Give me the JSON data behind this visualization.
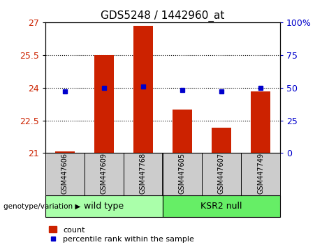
{
  "title": "GDS5248 / 1442960_at",
  "samples": [
    "GSM447606",
    "GSM447609",
    "GSM447768",
    "GSM447605",
    "GSM447607",
    "GSM447749"
  ],
  "count_values": [
    21.08,
    25.48,
    26.82,
    23.0,
    22.18,
    23.82
  ],
  "percentile_values": [
    47,
    50,
    51,
    48,
    47,
    50
  ],
  "ylim_left": [
    21,
    27
  ],
  "ylim_right": [
    0,
    100
  ],
  "yticks_left": [
    21,
    22.5,
    24,
    25.5,
    27
  ],
  "yticks_right": [
    0,
    25,
    50,
    75,
    100
  ],
  "bar_color": "#cc2200",
  "dot_color": "#0000cc",
  "groups": [
    {
      "label": "wild type",
      "indices": [
        0,
        1,
        2
      ],
      "color": "#aaffaa"
    },
    {
      "label": "KSR2 null",
      "indices": [
        3,
        4,
        5
      ],
      "color": "#66ee66"
    }
  ],
  "group_label": "genotype/variation",
  "legend_count": "count",
  "legend_percentile": "percentile rank within the sample",
  "bar_width": 0.5,
  "sample_box_color": "#cccccc",
  "fig_width": 4.61,
  "fig_height": 3.54,
  "dpi": 100
}
